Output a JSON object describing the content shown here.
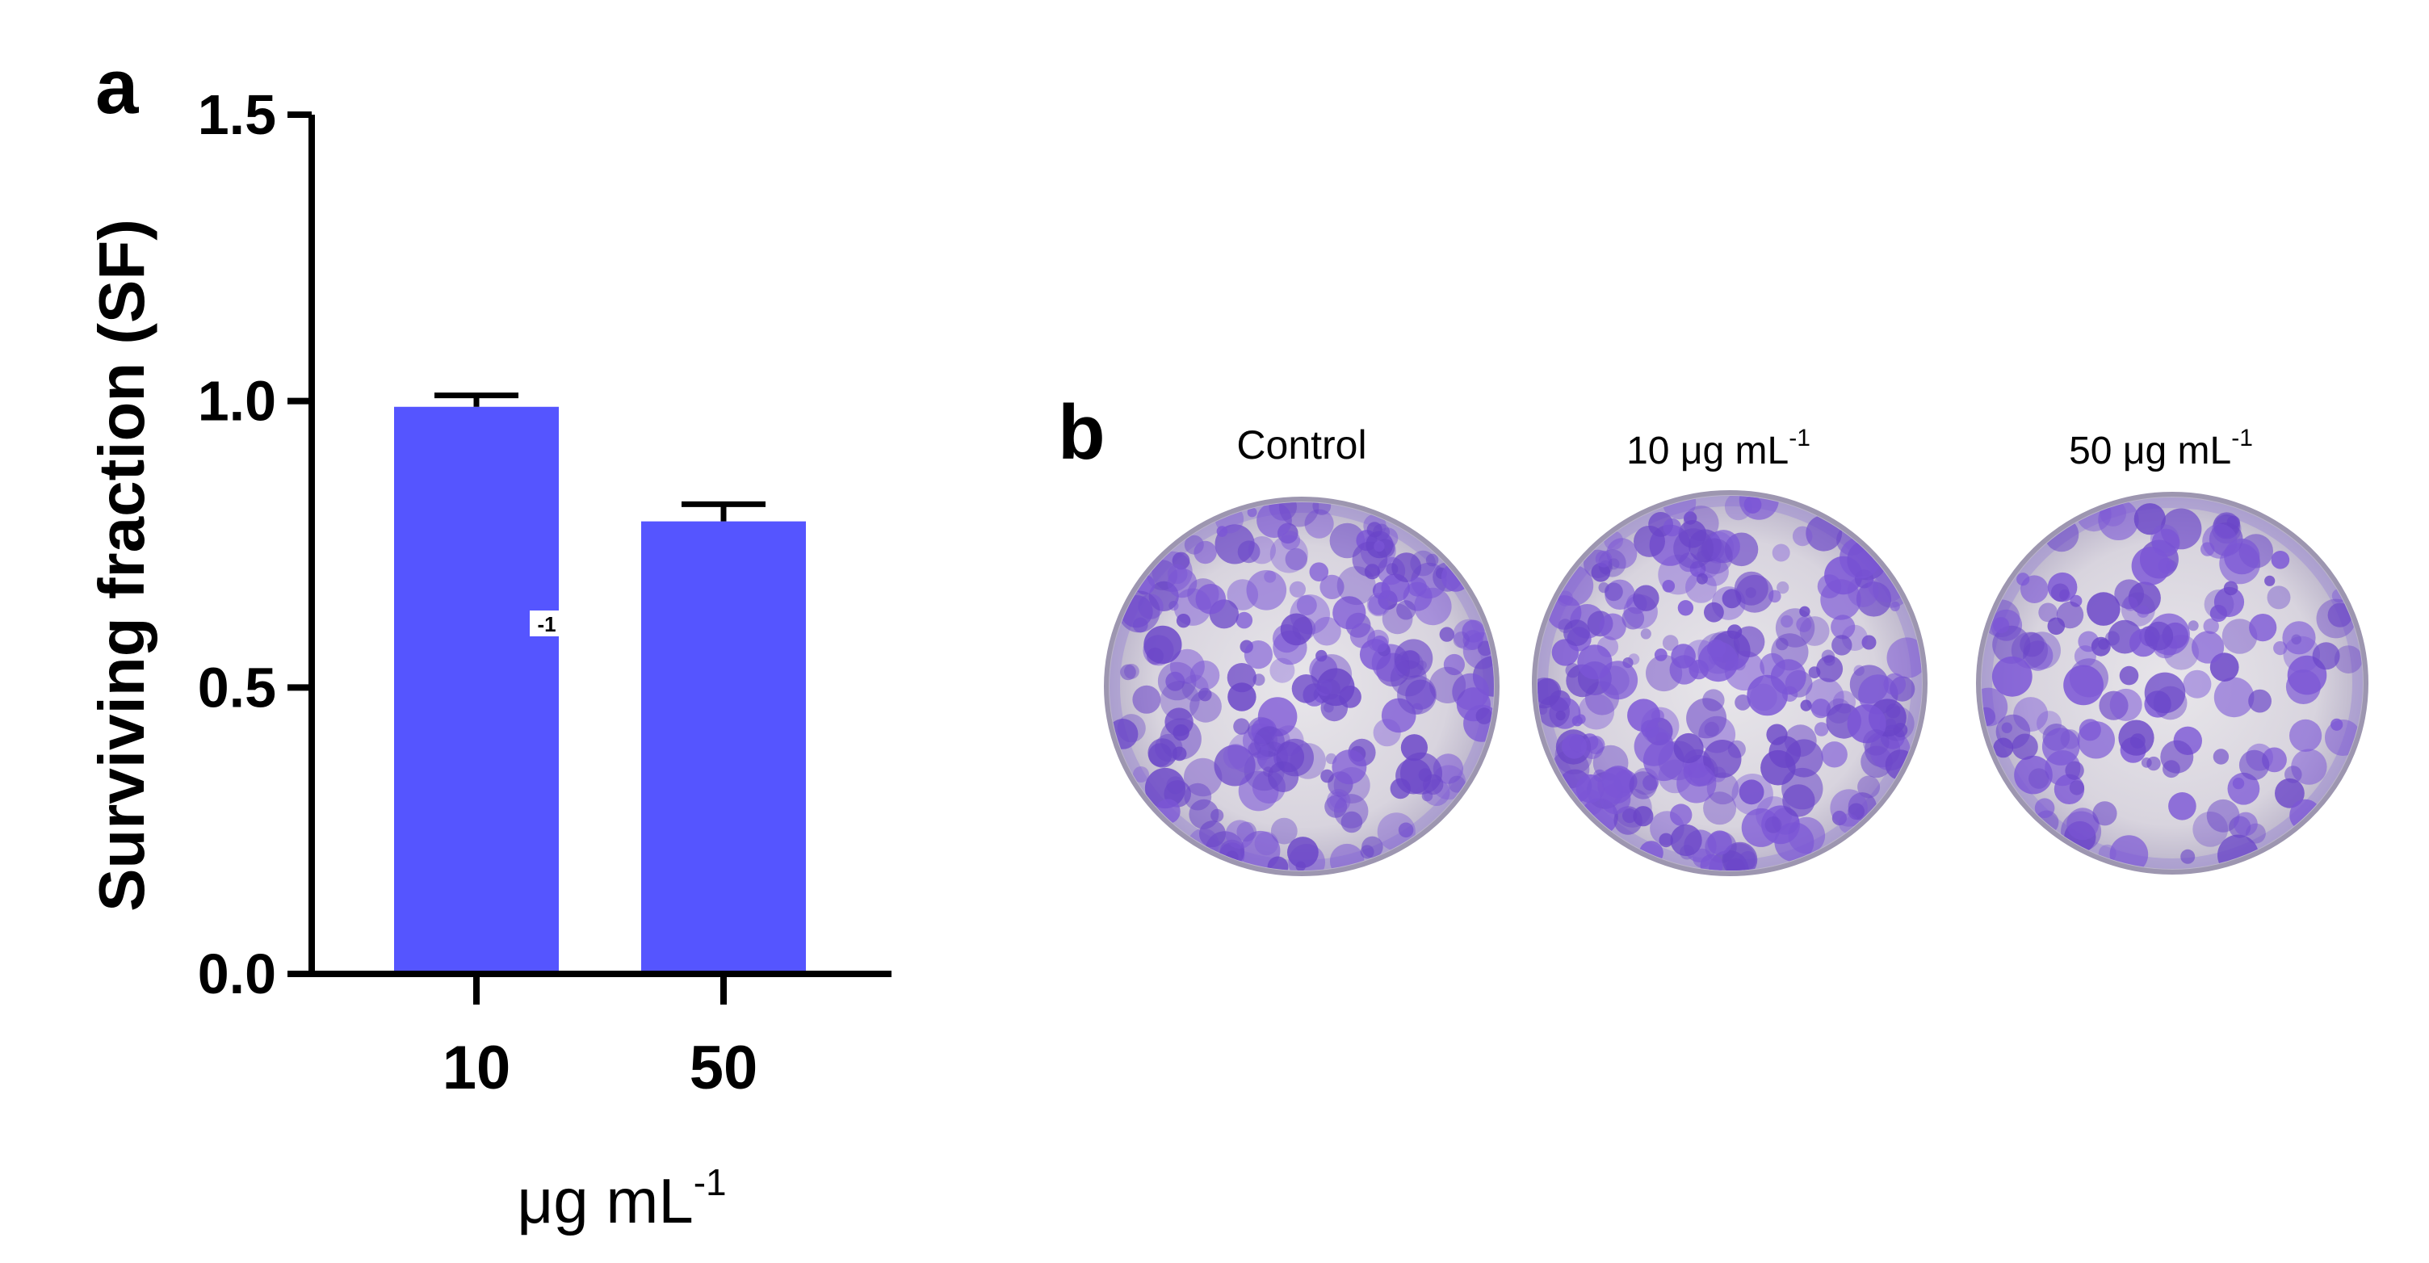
{
  "panels": {
    "a_label": "a",
    "b_label": "b"
  },
  "chart_data": {
    "type": "bar",
    "categories": [
      "10",
      "50"
    ],
    "series": [
      {
        "values": [
          0.99,
          0.79
        ],
        "error": [
          0.02,
          0.03
        ]
      }
    ],
    "xlabel": {
      "main": "μg mL",
      "sup": "-1"
    },
    "ylabel": "Surviving fraction (SF)",
    "ylim": [
      0,
      1.5
    ],
    "yticks": [
      0.0,
      0.5,
      1.0,
      1.5
    ],
    "ytick_labels": [
      "0.0",
      "0.5",
      "1.0",
      "1.5"
    ],
    "grid": false,
    "bar_color": "#5555ff",
    "stray_label": "-1"
  },
  "dishes": [
    {
      "label": "Control"
    },
    {
      "label": "10 μg mL",
      "sup": "-1"
    },
    {
      "label": "50 μg mL",
      "sup": "-1"
    }
  ],
  "colors": {
    "axis": "#000000",
    "bar": "#5555ff",
    "dish_bg": "#d9d6dc",
    "colony": "#7b55d6",
    "colony_dark": "#5a35b8",
    "rim": "#a9a4b8"
  }
}
